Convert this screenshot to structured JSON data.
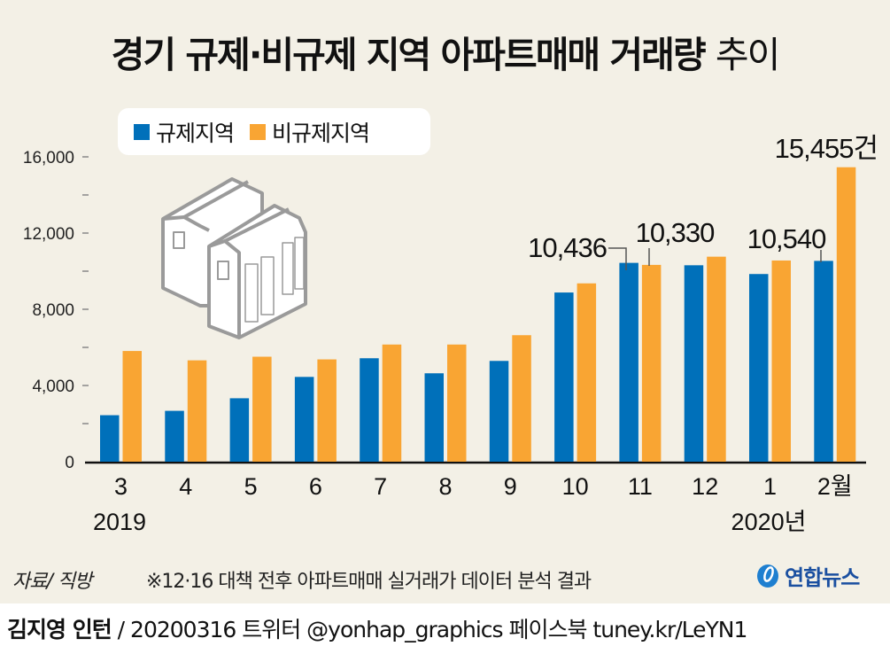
{
  "title": {
    "main": "경기 규제·비규제 지역 아파트매매 거래량",
    "suffix": "추이"
  },
  "legend": [
    {
      "label": "규제지역",
      "color": "#0070ba"
    },
    {
      "label": "비규제지역",
      "color": "#f9a533"
    }
  ],
  "source": "자료/ 직방",
  "note": "※12·16 대책 전후 아파트매매 실거래가 데이터 분석 결과",
  "logo": {
    "text": "연합뉴스",
    "color": "#1a4fa0"
  },
  "footer": {
    "author": "김지영 인턴",
    "rest": " / 20200316 트위터 @yonhap_graphics  페이스북 tuney.kr/LeYN1"
  },
  "colors": {
    "background": "#f3f0e6",
    "regulated": "#0070ba",
    "unregulated": "#f9a533",
    "building": "#9a9a9a"
  },
  "chart_data": {
    "type": "bar",
    "title": "경기 규제·비규제 지역 아파트매매 거래량 추이",
    "xlabel": "",
    "ylabel": "",
    "categories": [
      "3",
      "4",
      "5",
      "6",
      "7",
      "8",
      "9",
      "10",
      "11",
      "12",
      "1",
      "2월"
    ],
    "year_labels": [
      {
        "text": "2019",
        "category_index": 0
      },
      {
        "text": "2020년",
        "category_index": 10
      }
    ],
    "series": [
      {
        "name": "규제지역",
        "color": "#0070ba",
        "values": [
          2440,
          2670,
          3330,
          4450,
          5430,
          4640,
          5290,
          8880,
          10436,
          10310,
          9850,
          10540
        ]
      },
      {
        "name": "비규제지역",
        "color": "#f9a533",
        "values": [
          5810,
          5320,
          5510,
          5370,
          6150,
          6150,
          6640,
          9360,
          10330,
          10760,
          10560,
          15455
        ]
      }
    ],
    "ylim": [
      0,
      16000
    ],
    "yticks": [
      0,
      4000,
      8000,
      12000,
      16000
    ],
    "ytick_labels": [
      "0",
      "4,000",
      "8,000",
      "12,000",
      "16,000"
    ],
    "minor_ticks": [
      2000,
      6000,
      10000,
      14000
    ],
    "grid": false,
    "legend_position": "top-left",
    "annotations": [
      {
        "text": "10,436",
        "series": 0,
        "category_index": 8
      },
      {
        "text": "10,330",
        "series": 1,
        "category_index": 8
      },
      {
        "text": "10,540",
        "series": 0,
        "category_index": 11
      },
      {
        "text": "15,455건",
        "series": 1,
        "category_index": 11
      }
    ]
  }
}
